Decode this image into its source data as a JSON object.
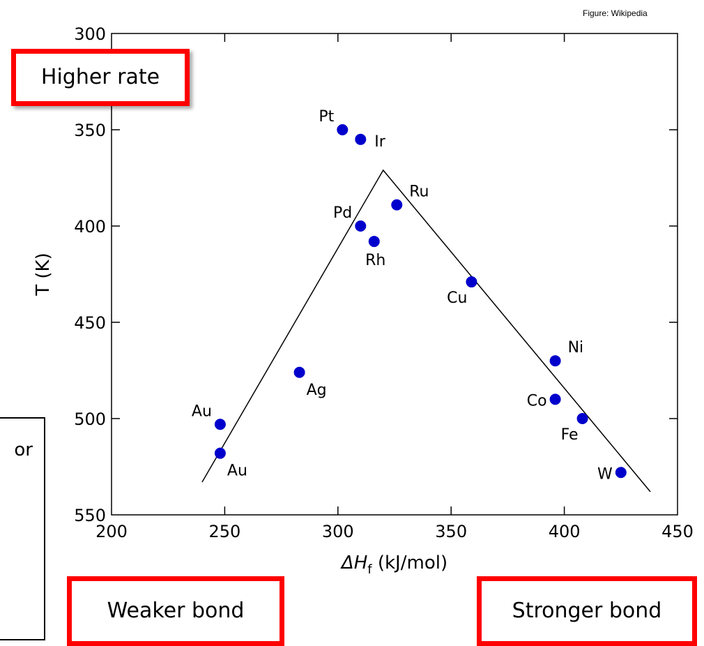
{
  "credit": "Figure: Wikipedia",
  "callouts": {
    "top_left": "Higher rate",
    "bottom_left": "Weaker bond",
    "bottom_right": "Stronger bond"
  },
  "side_box_text": "or",
  "colors": {
    "points": "#0000cc",
    "callout_border": "#ff0000",
    "volcano_line": "#000000"
  },
  "chart_data": {
    "type": "scatter",
    "xlabel_main": "ΔH",
    "xlabel_sub": "f",
    "xlabel_unit": " (kJ/mol)",
    "ylabel": "T (K)",
    "xlim": [
      200,
      450
    ],
    "ylim": [
      300,
      550
    ],
    "y_inverted": true,
    "xticks": [
      200,
      250,
      300,
      350,
      400,
      450
    ],
    "yticks": [
      300,
      350,
      400,
      450,
      500,
      550
    ],
    "points": [
      {
        "label": "Pt",
        "x": 302,
        "y": 350,
        "label_pos": "upper-left"
      },
      {
        "label": "Ir",
        "x": 310,
        "y": 355,
        "label_pos": "right"
      },
      {
        "label": "Ru",
        "x": 326,
        "y": 389,
        "label_pos": "upper-right"
      },
      {
        "label": "Pd",
        "x": 310,
        "y": 400,
        "label_pos": "upper-left"
      },
      {
        "label": "Rh",
        "x": 316,
        "y": 408,
        "label_pos": "below"
      },
      {
        "label": "Cu",
        "x": 359,
        "y": 429,
        "label_pos": "lower-left"
      },
      {
        "label": "Ni",
        "x": 396,
        "y": 470,
        "label_pos": "upper-right"
      },
      {
        "label": "Ag",
        "x": 283,
        "y": 476,
        "label_pos": "lower-right"
      },
      {
        "label": "Co",
        "x": 396,
        "y": 490,
        "label_pos": "left"
      },
      {
        "label": "Fe",
        "x": 408,
        "y": 500,
        "label_pos": "lower-left"
      },
      {
        "label": "Au",
        "x": 248,
        "y": 503,
        "label_pos": "upper-left"
      },
      {
        "label": "Au",
        "x": 248,
        "y": 518,
        "label_pos": "lower-right"
      },
      {
        "label": "W",
        "x": 425,
        "y": 528,
        "label_pos": "left"
      }
    ],
    "volcano_line": [
      [
        240,
        533
      ],
      [
        320,
        371
      ],
      [
        438,
        538
      ]
    ]
  }
}
